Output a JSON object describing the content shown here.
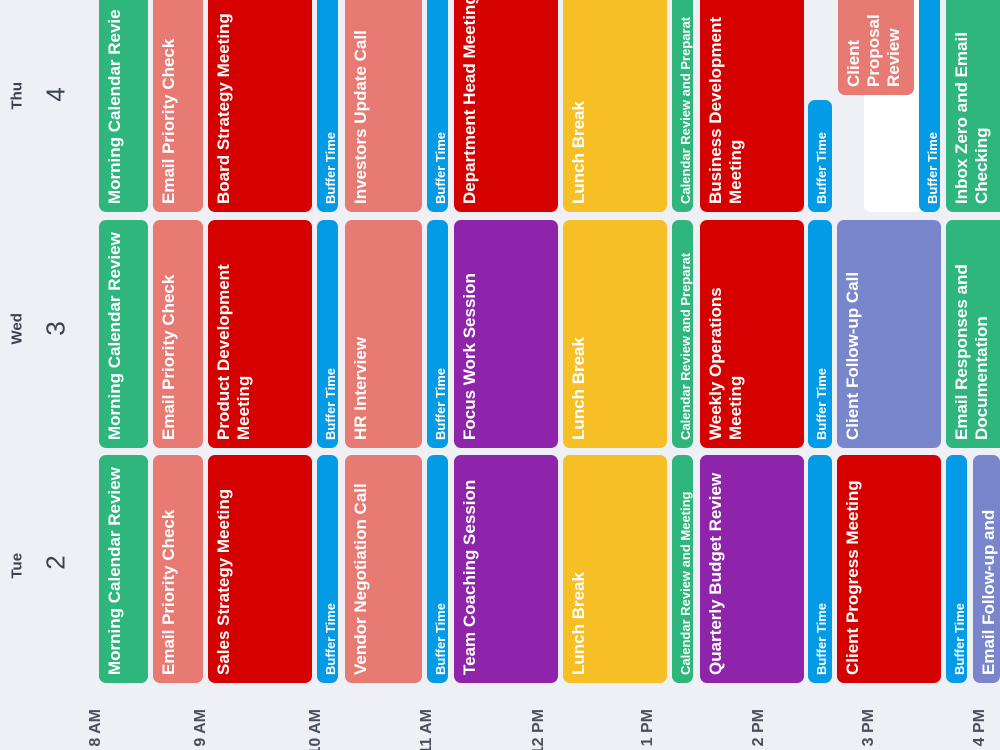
{
  "colors": {
    "green": "#2eb67d",
    "salmon": "#e87a74",
    "red": "#d50000",
    "blue": "#039be5",
    "purple": "#8e24aa",
    "yellow": "#f6bf26",
    "lavender": "#7986cb"
  },
  "days": [
    {
      "name": "Tue",
      "number": "2"
    },
    {
      "name": "Wed",
      "number": "3"
    },
    {
      "name": "Thu",
      "number": "4"
    }
  ],
  "time_labels": [
    "8 AM",
    "9 AM",
    "10 AM",
    "11 AM",
    "12 PM",
    "1 PM",
    "2 PM",
    "3 PM",
    "4 PM"
  ],
  "events": {
    "tue": [
      {
        "title": "Morning Calendar Review",
        "color": "green",
        "size": "large"
      },
      {
        "title": "Email Priority Check",
        "color": "salmon",
        "size": "large"
      },
      {
        "title": "Sales Strategy Meeting",
        "color": "red",
        "size": "large"
      },
      {
        "title": "Buffer Time",
        "color": "blue",
        "size": "small"
      },
      {
        "title": "Vendor Negotiation Call",
        "color": "salmon",
        "size": "large"
      },
      {
        "title": "Buffer Time",
        "color": "blue",
        "size": "small"
      },
      {
        "title": "Team Coaching Session",
        "color": "purple",
        "size": "large"
      },
      {
        "title": "Lunch Break",
        "color": "yellow",
        "size": "large"
      },
      {
        "title": "Calendar Review and Meeting",
        "color": "green",
        "size": "small"
      },
      {
        "title": "Quarterly Budget Review",
        "color": "purple",
        "size": "large"
      },
      {
        "title": "Buffer Time",
        "color": "blue",
        "size": "small"
      },
      {
        "title": "Client Progress Meeting",
        "color": "red",
        "size": "large"
      },
      {
        "title": "Buffer Time",
        "color": "blue",
        "size": "small"
      },
      {
        "title": "Email Follow-up and",
        "color": "lavender",
        "size": "large"
      }
    ],
    "wed": [
      {
        "title": "Morning Calendar Review",
        "color": "green",
        "size": "large"
      },
      {
        "title": "Email Priority Check",
        "color": "salmon",
        "size": "large"
      },
      {
        "title": "Product Development Meeting",
        "color": "red",
        "size": "large"
      },
      {
        "title": "Buffer Time",
        "color": "blue",
        "size": "small"
      },
      {
        "title": "HR Interview",
        "color": "salmon",
        "size": "large"
      },
      {
        "title": "Buffer Time",
        "color": "blue",
        "size": "small"
      },
      {
        "title": "Focus Work Session",
        "color": "purple",
        "size": "large"
      },
      {
        "title": "Lunch Break",
        "color": "yellow",
        "size": "large"
      },
      {
        "title": "Calendar Review and Preparat",
        "color": "green",
        "size": "small"
      },
      {
        "title": "Weekly Operations Meeting",
        "color": "red",
        "size": "large"
      },
      {
        "title": "Buffer Time",
        "color": "blue",
        "size": "small"
      },
      {
        "title": "Client Follow-up Call",
        "color": "lavender",
        "size": "large"
      },
      {
        "title": "Buffer Time",
        "color": "blue",
        "size": "small"
      },
      {
        "title": "Email Responses and Documentation",
        "color": "green",
        "size": "large"
      }
    ],
    "thu": [
      {
        "title": "Morning Calendar Revie",
        "color": "green",
        "size": "large"
      },
      {
        "title": "Email Priority Check",
        "color": "salmon",
        "size": "large"
      },
      {
        "title": "Board Strategy Meeting",
        "color": "red",
        "size": "large"
      },
      {
        "title": "Buffer Time",
        "color": "blue",
        "size": "small"
      },
      {
        "title": "Investors Update Call",
        "color": "salmon",
        "size": "large"
      },
      {
        "title": "Buffer Time",
        "color": "blue",
        "size": "small"
      },
      {
        "title": "Department Head Meeting",
        "color": "red",
        "size": "large"
      },
      {
        "title": "Lunch Break",
        "color": "yellow",
        "size": "large"
      },
      {
        "title": "Calendar Review and Preparat",
        "color": "green",
        "size": "small"
      },
      {
        "title": "Business Development Meeting",
        "color": "red",
        "size": "large"
      },
      {
        "title": "Buffer Time",
        "color": "blue",
        "size": "small"
      },
      {
        "title": "Client Proposal Review",
        "color": "salmon",
        "size": "large"
      },
      {
        "title": "Buffer Time",
        "color": "blue",
        "size": "small"
      },
      {
        "title": "Inbox Zero and Email Checking",
        "color": "green",
        "size": "large"
      }
    ]
  }
}
